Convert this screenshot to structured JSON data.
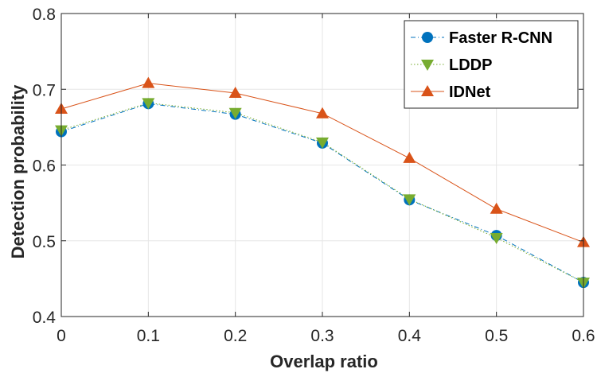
{
  "chart_data": {
    "type": "line",
    "xlabel": "Overlap ratio",
    "ylabel": "Detection probability",
    "x": [
      0,
      0.1,
      0.2,
      0.3,
      0.4,
      0.5,
      0.6
    ],
    "xlim": [
      0,
      0.6
    ],
    "ylim": [
      0.4,
      0.8
    ],
    "xticks": [
      "0",
      "0.1",
      "0.2",
      "0.3",
      "0.4",
      "0.5",
      "0.6"
    ],
    "yticks": [
      "0.4",
      "0.5",
      "0.6",
      "0.7",
      "0.8"
    ],
    "grid": true,
    "legend_position": "top-right",
    "series": [
      {
        "name": "Faster R-CNN",
        "values": [
          0.644,
          0.681,
          0.667,
          0.629,
          0.554,
          0.507,
          0.445
        ],
        "color": "#0072BD",
        "marker": "circle",
        "line_style": "dashdot"
      },
      {
        "name": "LDDP",
        "values": [
          0.646,
          0.682,
          0.669,
          0.63,
          0.555,
          0.504,
          0.445
        ],
        "color": "#77AC30",
        "marker": "triangle-down",
        "line_style": "dotted"
      },
      {
        "name": "IDNet",
        "values": [
          0.674,
          0.708,
          0.695,
          0.668,
          0.609,
          0.542,
          0.498
        ],
        "color": "#D95319",
        "marker": "triangle-up",
        "line_style": "solid"
      }
    ]
  }
}
